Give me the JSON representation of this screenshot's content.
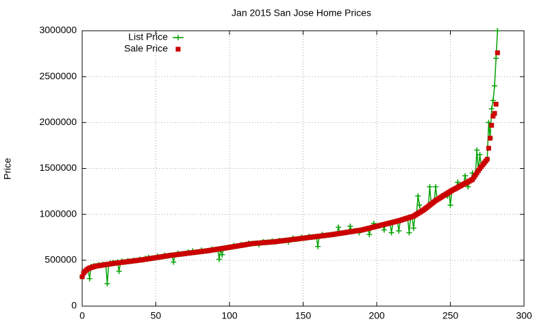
{
  "chart_data": {
    "type": "line",
    "title": "Jan 2015 San Jose Home Prices",
    "y_label": "Price",
    "xlim": [
      0,
      300
    ],
    "xticks": [
      0,
      50,
      100,
      150,
      200,
      250,
      300
    ],
    "ylim": [
      0,
      3000000
    ],
    "yticks": [
      0,
      500000,
      1000000,
      1500000,
      2000000,
      2500000,
      3000000
    ],
    "grid": true,
    "legend": "upper-left",
    "series": [
      {
        "name": "List Price",
        "color": "#00a000",
        "style": "linespoints",
        "values": [
          320000,
          365000,
          380000,
          400000,
          405000,
          300000,
          430000,
          425000,
          440000,
          435000,
          438000,
          450000,
          442000,
          445000,
          455000,
          450000,
          452000,
          245000,
          457000,
          470000,
          462000,
          475000,
          467000,
          469000,
          480000,
          380000,
          475000,
          490000,
          479000,
          481000,
          483000,
          495000,
          487000,
          489000,
          491000,
          500000,
          495000,
          497000,
          499000,
          510000,
          503000,
          505500,
          508000,
          520000,
          513000,
          530000,
          518000,
          520500,
          523000,
          525500,
          528000,
          545000,
          533000,
          535500,
          538000,
          540500,
          555000,
          545500,
          548000,
          550500,
          553000,
          555000,
          480000,
          559000,
          561000,
          575000,
          565000,
          567000,
          569000,
          571000,
          573000,
          575000,
          590000,
          579000,
          581000,
          600000,
          585000,
          587000,
          589000,
          591000,
          593000,
          610000,
          597000,
          599000,
          601000,
          603000,
          605500,
          608000,
          620000,
          613000,
          615500,
          618000,
          620500,
          510000,
          625500,
          560000,
          630500,
          633000,
          635500,
          638000,
          640500,
          643000,
          646000,
          660000,
          651000,
          654000,
          656500,
          659000,
          670000,
          664500,
          667000,
          670000,
          672500,
          685000,
          678000,
          681000,
          682000,
          683500,
          685000,
          686000,
          670000,
          689000,
          690000,
          700000,
          693000,
          694000,
          695500,
          697000,
          698000,
          710000,
          700000,
          702000,
          704000,
          706000,
          715000,
          710000,
          712000,
          714000,
          716000,
          718000,
          700000,
          722000,
          724000,
          740000,
          728000,
          730000,
          732000,
          734000,
          736000,
          750000,
          740000,
          742000,
          744000,
          746000,
          760000,
          750000,
          752000,
          754000,
          756000,
          758000,
          650000,
          762000,
          764000,
          780000,
          768000,
          770000,
          772000,
          774000,
          776000,
          778000,
          780000,
          782500,
          785000,
          787500,
          860000,
          792500,
          795000,
          797500,
          800000,
          802500,
          805000,
          807500,
          870000,
          812500,
          815000,
          817500,
          820000,
          822500,
          800000,
          827500,
          830000,
          834000,
          838000,
          842000,
          846000,
          780000,
          854000,
          858000,
          900000,
          866000,
          870000,
          874000,
          878000,
          882000,
          886000,
          830000,
          894000,
          898000,
          902000,
          906000,
          800000,
          914000,
          918000,
          922000,
          926000,
          820000,
          935000,
          940000,
          945000,
          950000,
          955000,
          960000,
          800000,
          970000,
          975000,
          850000,
          990000,
          1000000,
          1200000,
          1100000,
          1030000,
          1040000,
          1050000,
          1062500,
          1075000,
          1087500,
          1300000,
          1112500,
          1125000,
          1137500,
          1300000,
          1160000,
          1170000,
          1180000,
          1200000,
          1200000,
          1210000,
          1220000,
          1200000,
          1240000,
          1100000,
          1259000,
          1268000,
          1276000,
          1285000,
          1350000,
          1303000,
          1311000,
          1320000,
          1329000,
          1420000,
          1346000,
          1300000,
          1363000,
          1371000,
          1450000,
          1404000,
          1428000,
          1700000,
          1476000,
          1650000,
          1520000,
          1540000,
          1560000,
          1580000,
          1600000,
          2000000,
          1830000,
          2150000,
          2240000,
          2400000,
          2700000,
          3000000
        ]
      },
      {
        "name": "Sale Price",
        "color": "#cc0000",
        "style": "points",
        "values": [
          320000,
          360000,
          380000,
          395000,
          405000,
          415000,
          420000,
          425000,
          430000,
          435000,
          438000,
          440000,
          442000,
          445000,
          447000,
          450000,
          452000,
          455000,
          457000,
          460000,
          462000,
          465000,
          467000,
          469000,
          471000,
          473000,
          475000,
          477000,
          479000,
          481000,
          483000,
          485000,
          487000,
          489000,
          491000,
          493000,
          495000,
          497000,
          499000,
          501000,
          503000,
          505500,
          508000,
          510500,
          513000,
          515500,
          518000,
          520500,
          523000,
          525500,
          528000,
          530500,
          533000,
          535500,
          538000,
          540500,
          543000,
          545500,
          548000,
          550500,
          553000,
          555000,
          557000,
          559000,
          561000,
          563000,
          565000,
          567000,
          569000,
          571000,
          573000,
          575000,
          577000,
          579000,
          581000,
          583000,
          585000,
          587000,
          589000,
          591000,
          593000,
          595000,
          597000,
          599000,
          601000,
          603000,
          605500,
          608000,
          610500,
          613000,
          615500,
          618000,
          620500,
          623000,
          625500,
          628000,
          630500,
          633000,
          635500,
          638000,
          640500,
          643000,
          646000,
          648500,
          651000,
          654000,
          656500,
          659000,
          662000,
          664500,
          667000,
          670000,
          672500,
          675000,
          678000,
          681000,
          682000,
          683500,
          685000,
          686000,
          687500,
          689000,
          690000,
          691500,
          693000,
          694000,
          695500,
          697000,
          698000,
          699000,
          700000,
          702000,
          704000,
          706000,
          708000,
          710000,
          712000,
          714000,
          716000,
          718000,
          720000,
          722000,
          724000,
          726000,
          728000,
          730000,
          732000,
          734000,
          736000,
          738000,
          740000,
          742000,
          744000,
          746000,
          748000,
          750000,
          752000,
          754000,
          756000,
          758000,
          760000,
          762000,
          764000,
          766000,
          768000,
          770000,
          772000,
          774000,
          776000,
          778000,
          780000,
          782500,
          785000,
          787500,
          790000,
          792500,
          795000,
          797500,
          800000,
          802500,
          805000,
          807500,
          810000,
          812500,
          815000,
          817500,
          820000,
          822500,
          825000,
          827500,
          830000,
          834000,
          838000,
          842000,
          846000,
          850000,
          854000,
          858000,
          862000,
          866000,
          870000,
          874000,
          878000,
          882000,
          886000,
          890000,
          894000,
          898000,
          902000,
          906000,
          910000,
          914000,
          918000,
          922000,
          926000,
          930000,
          935000,
          940000,
          945000,
          950000,
          955000,
          960000,
          965000,
          970000,
          975000,
          980000,
          990000,
          1000000,
          1010000,
          1020000,
          1030000,
          1040000,
          1050000,
          1062500,
          1075000,
          1087500,
          1100000,
          1112500,
          1125000,
          1137500,
          1150000,
          1160000,
          1170000,
          1180000,
          1190000,
          1200000,
          1210000,
          1220000,
          1230000,
          1240000,
          1250000,
          1259000,
          1268000,
          1276000,
          1285000,
          1294000,
          1303000,
          1311000,
          1320000,
          1329000,
          1337000,
          1346000,
          1354000,
          1363000,
          1371000,
          1380000,
          1404000,
          1428000,
          1452000,
          1476000,
          1500000,
          1520000,
          1540000,
          1560000,
          1580000,
          1600000,
          1720000,
          1830000,
          1970000,
          2070000,
          2100000,
          2200000,
          2760000
        ]
      }
    ]
  }
}
